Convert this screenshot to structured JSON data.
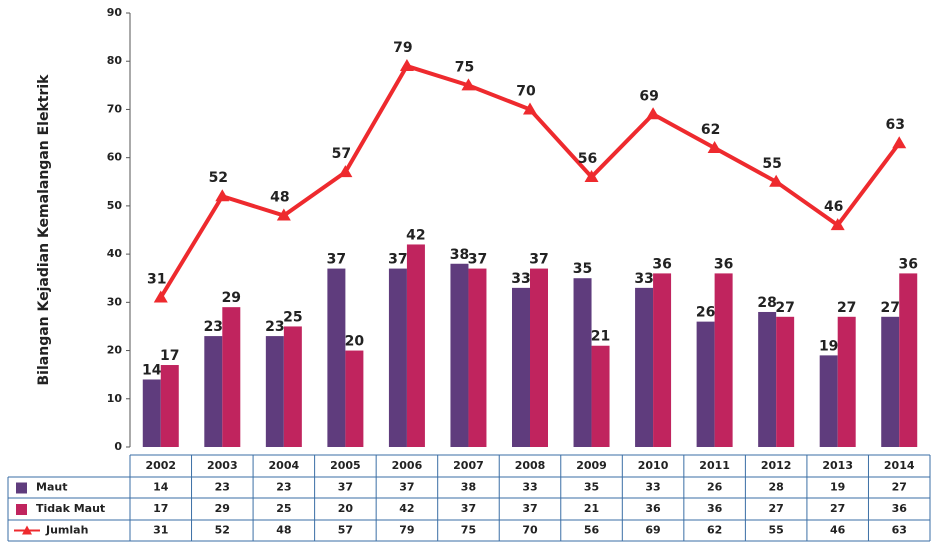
{
  "chart_data": {
    "type": "bar",
    "y_label": "Bilangan Kejadian Kemalangan Elektrik",
    "categories": [
      "2002",
      "2003",
      "2004",
      "2005",
      "2006",
      "2007",
      "2008",
      "2009",
      "2010",
      "2011",
      "2012",
      "2013",
      "2014"
    ],
    "series": [
      {
        "name": "Maut",
        "color": "#5f3c7d",
        "values": [
          14,
          23,
          23,
          37,
          37,
          38,
          33,
          35,
          33,
          26,
          28,
          19,
          27
        ]
      },
      {
        "name": "Tidak Maut",
        "color": "#c0245e",
        "values": [
          17,
          29,
          25,
          20,
          42,
          37,
          37,
          21,
          36,
          36,
          27,
          27,
          36
        ]
      },
      {
        "name": "Jumlah",
        "type": "line",
        "color": "#ee2a2e",
        "values": [
          31,
          52,
          48,
          57,
          79,
          75,
          70,
          56,
          69,
          62,
          55,
          46,
          63
        ]
      }
    ],
    "ylim": [
      0,
      90
    ],
    "yticks": [
      0,
      10,
      20,
      30,
      40,
      50,
      60,
      70,
      80,
      90
    ],
    "grid": false
  }
}
